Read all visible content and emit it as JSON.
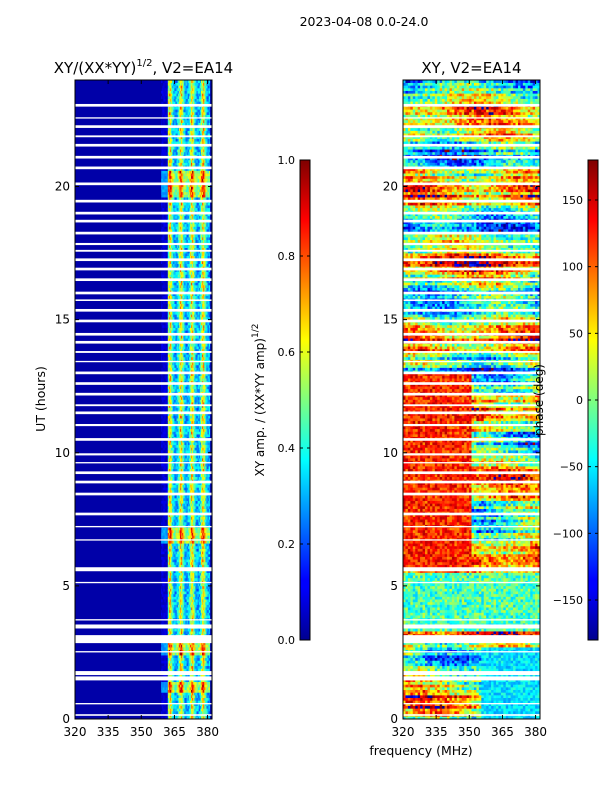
{
  "figure": {
    "suptitle": "2023-04-08 0.0-24.0",
    "shared_xlabel": "frequency (MHz)",
    "colors": {
      "background": "#ffffff",
      "gap": "#ffffff",
      "axis": "#000000"
    }
  },
  "chart_data": [
    {
      "type": "heatmap",
      "name": "amplitude-ratio",
      "title": "XY/(XX*YY)^1/2, V2=EA14",
      "title_main": "XY/(XX*YY)",
      "title_sup": "1/2",
      "title_tail": ", V2=EA14",
      "xlabel": "",
      "ylabel": "UT (hours)",
      "xlim": [
        320,
        382
      ],
      "ylim": [
        0,
        24
      ],
      "xticks": [
        320,
        335,
        350,
        365,
        380
      ],
      "yticks": [
        0,
        5,
        10,
        15,
        20
      ],
      "colormap": "jet",
      "colorbar": {
        "label": "XY amp. / (XX*YY amp)^1/2",
        "label_main": "XY amp. / (XX*YY amp)",
        "label_sup": "1/2",
        "range": [
          0.0,
          1.0
        ],
        "ticks": [
          "0.0",
          "0.2",
          "0.4",
          "0.6",
          "0.8",
          "1.0"
        ]
      },
      "background_value": 0.04,
      "active_band_mhz": [
        359,
        381
      ],
      "bright_channels_mhz": [
        363,
        368,
        373,
        378
      ]
    },
    {
      "type": "heatmap",
      "name": "phase",
      "title": "XY, V2=EA14",
      "xlabel": "frequency (MHz)",
      "ylabel": "",
      "xlim": [
        320,
        382
      ],
      "ylim": [
        0,
        24
      ],
      "xticks": [
        320,
        335,
        350,
        365,
        380
      ],
      "yticks": [
        0,
        5,
        10,
        15,
        20
      ],
      "colormap": "jet",
      "colorbar": {
        "label": "phase (deg)",
        "range": [
          -180,
          180
        ],
        "ticks": [
          "−150",
          "−100",
          "−50",
          "0",
          "50",
          "100",
          "150"
        ]
      }
    }
  ],
  "flagged_ut_hours": [
    [
      0.12,
      0.18
    ],
    [
      0.55,
      0.6
    ],
    [
      1.45,
      1.6
    ],
    [
      1.65,
      1.8
    ],
    [
      2.5,
      2.55
    ],
    [
      2.85,
      3.15
    ],
    [
      3.4,
      3.55
    ],
    [
      3.7,
      3.75
    ],
    [
      5.1,
      5.15
    ],
    [
      5.55,
      5.7
    ],
    [
      6.7,
      6.75
    ],
    [
      7.2,
      7.25
    ],
    [
      7.65,
      7.75
    ],
    [
      8.4,
      8.5
    ],
    [
      8.85,
      8.95
    ],
    [
      9.2,
      9.3
    ],
    [
      9.6,
      9.65
    ],
    [
      9.9,
      9.98
    ],
    [
      10.45,
      10.55
    ],
    [
      11.0,
      11.08
    ],
    [
      11.45,
      11.55
    ],
    [
      11.75,
      11.82
    ],
    [
      12.15,
      12.25
    ],
    [
      12.55,
      12.65
    ],
    [
      12.95,
      13.05
    ],
    [
      13.4,
      13.45
    ],
    [
      13.75,
      13.82
    ],
    [
      14.1,
      14.2
    ],
    [
      14.4,
      14.5
    ],
    [
      14.9,
      15.0
    ],
    [
      15.3,
      15.4
    ],
    [
      15.7,
      15.76
    ],
    [
      15.95,
      16.05
    ],
    [
      16.45,
      16.55
    ],
    [
      16.85,
      16.95
    ],
    [
      17.2,
      17.3
    ],
    [
      17.55,
      17.62
    ],
    [
      17.8,
      17.88
    ],
    [
      18.2,
      18.3
    ],
    [
      18.65,
      18.75
    ],
    [
      18.95,
      19.05
    ],
    [
      19.4,
      19.5
    ],
    [
      20.05,
      20.15
    ],
    [
      20.65,
      20.75
    ],
    [
      21.05,
      21.15
    ],
    [
      21.5,
      21.6
    ],
    [
      21.85,
      21.92
    ],
    [
      22.2,
      22.3
    ],
    [
      22.55,
      22.6
    ],
    [
      23.0,
      23.1
    ]
  ]
}
